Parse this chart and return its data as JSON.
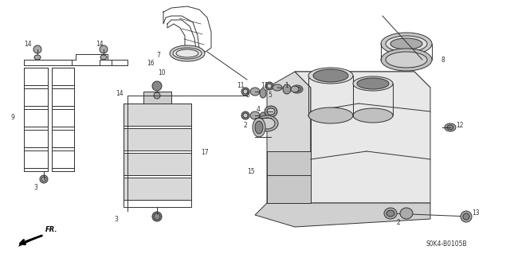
{
  "bg_color": "#ffffff",
  "diagram_code": "S0K4-B0105B",
  "figsize": [
    6.4,
    3.19
  ],
  "dpi": 100,
  "line_color": "#333333",
  "lw": 0.7
}
